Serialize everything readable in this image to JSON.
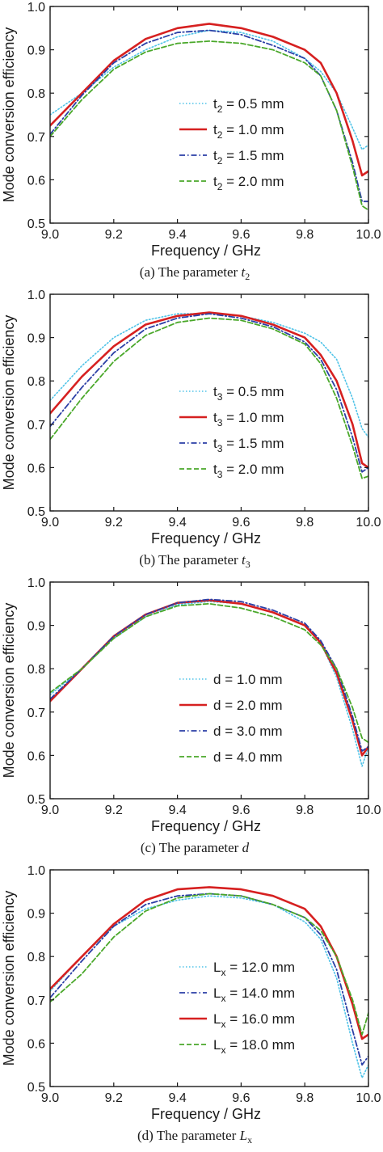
{
  "colors": {
    "dotted": "#4fc3e8",
    "solid": "#d62020",
    "dashdot": "#2b3fa6",
    "dashed": "#4aa82a",
    "axis": "#1a1a1a"
  },
  "chart_data": [
    {
      "type": "line",
      "xlabel": "Frequency / GHz",
      "ylabel": "Mode conversion efficiency",
      "xlim": [
        9.0,
        10.0
      ],
      "ylim": [
        0.5,
        1.0
      ],
      "xticks": [
        "9.0",
        "9.2",
        "9.4",
        "9.6",
        "9.8",
        "10.0"
      ],
      "yticks": [
        "0.5",
        "0.6",
        "0.7",
        "0.8",
        "0.9",
        "1.0"
      ],
      "caption": {
        "prefix": "(a) The parameter ",
        "var": "t",
        "sub": "2"
      },
      "legend_position": "center-right",
      "series": [
        {
          "name": "t",
          "sub": "2",
          "value": " = 0.5 mm",
          "style": "dotted",
          "x": [
            9.0,
            9.1,
            9.2,
            9.3,
            9.4,
            9.5,
            9.6,
            9.7,
            9.8,
            9.85,
            9.9,
            9.95,
            9.98,
            10.0
          ],
          "y": [
            0.75,
            0.8,
            0.86,
            0.9,
            0.93,
            0.945,
            0.94,
            0.92,
            0.88,
            0.85,
            0.8,
            0.72,
            0.67,
            0.68
          ]
        },
        {
          "name": "t",
          "sub": "2",
          "value": " = 1.0 mm",
          "style": "solid",
          "x": [
            9.0,
            9.1,
            9.2,
            9.3,
            9.4,
            9.5,
            9.6,
            9.7,
            9.8,
            9.85,
            9.9,
            9.95,
            9.98,
            10.0
          ],
          "y": [
            0.725,
            0.8,
            0.875,
            0.925,
            0.95,
            0.96,
            0.95,
            0.93,
            0.9,
            0.87,
            0.8,
            0.69,
            0.61,
            0.62
          ]
        },
        {
          "name": "t",
          "sub": "2",
          "value": " = 1.5 mm",
          "style": "dashdot",
          "x": [
            9.0,
            9.1,
            9.2,
            9.3,
            9.4,
            9.5,
            9.6,
            9.7,
            9.8,
            9.85,
            9.9,
            9.95,
            9.98,
            10.0
          ],
          "y": [
            0.705,
            0.795,
            0.87,
            0.915,
            0.94,
            0.945,
            0.935,
            0.91,
            0.88,
            0.84,
            0.76,
            0.64,
            0.55,
            0.55
          ]
        },
        {
          "name": "t",
          "sub": "2",
          "value": " = 2.0 mm",
          "style": "dashed",
          "x": [
            9.0,
            9.1,
            9.2,
            9.3,
            9.4,
            9.5,
            9.6,
            9.7,
            9.8,
            9.85,
            9.9,
            9.95,
            9.98,
            10.0
          ],
          "y": [
            0.7,
            0.785,
            0.855,
            0.895,
            0.915,
            0.92,
            0.915,
            0.9,
            0.87,
            0.84,
            0.76,
            0.63,
            0.54,
            0.53
          ]
        }
      ]
    },
    {
      "type": "line",
      "xlabel": "Frequency / GHz",
      "ylabel": "Mode conversion efficiency",
      "xlim": [
        9.0,
        10.0
      ],
      "ylim": [
        0.5,
        1.0
      ],
      "xticks": [
        "9.0",
        "9.2",
        "9.4",
        "9.6",
        "9.8",
        "10.0"
      ],
      "yticks": [
        "0.5",
        "0.6",
        "0.7",
        "0.8",
        "0.9",
        "1.0"
      ],
      "caption": {
        "prefix": "(b) The parameter ",
        "var": "t",
        "sub": "3"
      },
      "legend_position": "center-right",
      "series": [
        {
          "name": "t",
          "sub": "3",
          "value": " = 0.5 mm",
          "style": "dotted",
          "x": [
            9.0,
            9.1,
            9.2,
            9.3,
            9.4,
            9.5,
            9.6,
            9.7,
            9.8,
            9.85,
            9.9,
            9.95,
            9.98,
            10.0
          ],
          "y": [
            0.755,
            0.835,
            0.9,
            0.94,
            0.955,
            0.955,
            0.95,
            0.935,
            0.91,
            0.89,
            0.85,
            0.76,
            0.69,
            0.67
          ]
        },
        {
          "name": "t",
          "sub": "3",
          "value": " = 1.0 mm",
          "style": "solid",
          "x": [
            9.0,
            9.1,
            9.2,
            9.3,
            9.4,
            9.5,
            9.6,
            9.7,
            9.8,
            9.85,
            9.9,
            9.95,
            9.98,
            10.0
          ],
          "y": [
            0.725,
            0.81,
            0.88,
            0.93,
            0.95,
            0.958,
            0.95,
            0.93,
            0.9,
            0.86,
            0.8,
            0.7,
            0.61,
            0.6
          ]
        },
        {
          "name": "t",
          "sub": "3",
          "value": " = 1.5 mm",
          "style": "dashdot",
          "x": [
            9.0,
            9.1,
            9.2,
            9.3,
            9.4,
            9.5,
            9.6,
            9.7,
            9.8,
            9.85,
            9.9,
            9.95,
            9.98,
            10.0
          ],
          "y": [
            0.695,
            0.785,
            0.865,
            0.92,
            0.945,
            0.955,
            0.945,
            0.925,
            0.89,
            0.85,
            0.78,
            0.67,
            0.59,
            0.6
          ]
        },
        {
          "name": "t",
          "sub": "3",
          "value": " = 2.0 mm",
          "style": "dashed",
          "x": [
            9.0,
            9.1,
            9.2,
            9.3,
            9.4,
            9.5,
            9.6,
            9.7,
            9.8,
            9.85,
            9.9,
            9.95,
            9.98,
            10.0
          ],
          "y": [
            0.665,
            0.76,
            0.845,
            0.905,
            0.935,
            0.945,
            0.94,
            0.92,
            0.885,
            0.84,
            0.76,
            0.65,
            0.575,
            0.58
          ]
        }
      ]
    },
    {
      "type": "line",
      "xlabel": "Frequency / GHz",
      "ylabel": "Mode conversion efficiency",
      "xlim": [
        9.0,
        10.0
      ],
      "ylim": [
        0.5,
        1.0
      ],
      "xticks": [
        "9.0",
        "9.2",
        "9.4",
        "9.6",
        "9.8",
        "10.0"
      ],
      "yticks": [
        "0.5",
        "0.6",
        "0.7",
        "0.8",
        "0.9",
        "1.0"
      ],
      "caption": {
        "prefix": "(c) The parameter ",
        "var": "d",
        "sub": ""
      },
      "legend_position": "center-right",
      "series": [
        {
          "name": "d",
          "sub": "",
          "value": " = 1.0 mm",
          "style": "dotted",
          "x": [
            9.0,
            9.1,
            9.2,
            9.3,
            9.4,
            9.5,
            9.6,
            9.7,
            9.8,
            9.85,
            9.9,
            9.95,
            9.98,
            10.0
          ],
          "y": [
            0.74,
            0.8,
            0.87,
            0.92,
            0.948,
            0.955,
            0.95,
            0.93,
            0.9,
            0.86,
            0.78,
            0.66,
            0.575,
            0.62
          ]
        },
        {
          "name": "d",
          "sub": "",
          "value": " = 2.0 mm",
          "style": "solid",
          "x": [
            9.0,
            9.1,
            9.2,
            9.3,
            9.4,
            9.5,
            9.6,
            9.7,
            9.8,
            9.85,
            9.9,
            9.95,
            9.98,
            10.0
          ],
          "y": [
            0.725,
            0.8,
            0.875,
            0.925,
            0.952,
            0.958,
            0.95,
            0.93,
            0.9,
            0.86,
            0.79,
            0.68,
            0.6,
            0.62
          ]
        },
        {
          "name": "d",
          "sub": "",
          "value": " = 3.0 mm",
          "style": "dashdot",
          "x": [
            9.0,
            9.1,
            9.2,
            9.3,
            9.4,
            9.5,
            9.6,
            9.7,
            9.8,
            9.85,
            9.9,
            9.95,
            9.98,
            10.0
          ],
          "y": [
            0.73,
            0.8,
            0.875,
            0.925,
            0.952,
            0.96,
            0.955,
            0.935,
            0.905,
            0.865,
            0.8,
            0.69,
            0.61,
            0.62
          ]
        },
        {
          "name": "d",
          "sub": "",
          "value": " = 4.0 mm",
          "style": "dashed",
          "x": [
            9.0,
            9.1,
            9.2,
            9.3,
            9.4,
            9.5,
            9.6,
            9.7,
            9.8,
            9.85,
            9.9,
            9.95,
            9.98,
            10.0
          ],
          "y": [
            0.745,
            0.8,
            0.87,
            0.92,
            0.945,
            0.95,
            0.94,
            0.92,
            0.89,
            0.855,
            0.8,
            0.71,
            0.64,
            0.63
          ]
        }
      ]
    },
    {
      "type": "line",
      "xlabel": "Frequency / GHz",
      "ylabel": "Mode conversion efficiency",
      "xlim": [
        9.0,
        10.0
      ],
      "ylim": [
        0.5,
        1.0
      ],
      "xticks": [
        "9.0",
        "9.2",
        "9.4",
        "9.6",
        "9.8",
        "10.0"
      ],
      "yticks": [
        "0.5",
        "0.6",
        "0.7",
        "0.8",
        "0.9",
        "1.0"
      ],
      "caption": {
        "prefix": "(d) The parameter ",
        "var": "L",
        "sub": "x"
      },
      "legend_position": "center-right",
      "series": [
        {
          "name": "L",
          "sub": "x",
          "value": " = 12.0 mm",
          "style": "dotted",
          "x": [
            9.0,
            9.1,
            9.2,
            9.3,
            9.4,
            9.5,
            9.6,
            9.7,
            9.8,
            9.85,
            9.9,
            9.95,
            9.98,
            10.0
          ],
          "y": [
            0.72,
            0.8,
            0.87,
            0.91,
            0.93,
            0.94,
            0.935,
            0.92,
            0.88,
            0.84,
            0.75,
            0.6,
            0.52,
            0.55
          ]
        },
        {
          "name": "L",
          "sub": "x",
          "value": " = 14.0 mm",
          "style": "dashdot",
          "x": [
            9.0,
            9.1,
            9.2,
            9.3,
            9.4,
            9.5,
            9.6,
            9.7,
            9.8,
            9.85,
            9.9,
            9.95,
            9.98,
            10.0
          ],
          "y": [
            0.705,
            0.79,
            0.87,
            0.92,
            0.94,
            0.945,
            0.94,
            0.92,
            0.89,
            0.85,
            0.77,
            0.63,
            0.55,
            0.57
          ]
        },
        {
          "name": "L",
          "sub": "x",
          "value": " = 16.0 mm",
          "style": "solid",
          "x": [
            9.0,
            9.1,
            9.2,
            9.3,
            9.4,
            9.5,
            9.6,
            9.7,
            9.8,
            9.85,
            9.9,
            9.95,
            9.98,
            10.0
          ],
          "y": [
            0.725,
            0.8,
            0.875,
            0.93,
            0.955,
            0.96,
            0.955,
            0.94,
            0.91,
            0.87,
            0.8,
            0.69,
            0.61,
            0.62
          ]
        },
        {
          "name": "L",
          "sub": "x",
          "value": " = 18.0 mm",
          "style": "dashed",
          "x": [
            9.0,
            9.1,
            9.2,
            9.3,
            9.4,
            9.5,
            9.6,
            9.7,
            9.8,
            9.85,
            9.9,
            9.95,
            9.98,
            10.0
          ],
          "y": [
            0.695,
            0.76,
            0.845,
            0.905,
            0.935,
            0.945,
            0.94,
            0.92,
            0.89,
            0.86,
            0.8,
            0.7,
            0.62,
            0.67
          ]
        }
      ]
    }
  ]
}
